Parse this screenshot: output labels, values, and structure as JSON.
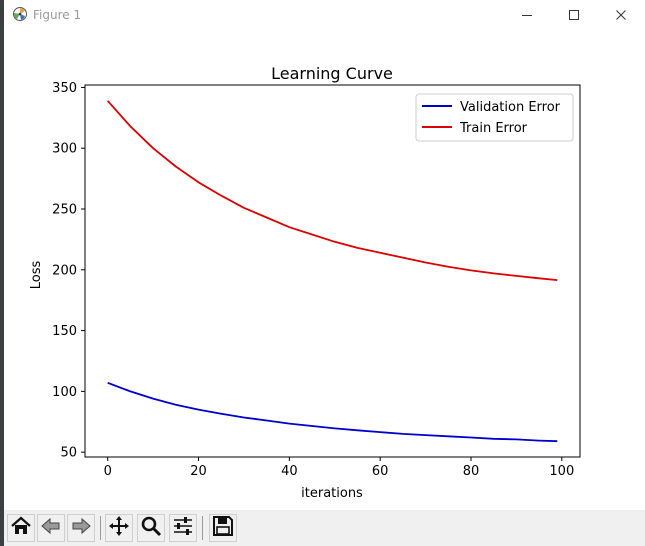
{
  "window": {
    "title": "Figure 1",
    "icons": {
      "app": "matplotlib-icon",
      "minimize": "minimize-icon",
      "maximize": "maximize-icon",
      "close": "close-icon"
    }
  },
  "toolbar": {
    "buttons": [
      {
        "name": "home-button",
        "icon": "home-icon"
      },
      {
        "name": "back-button",
        "icon": "back-arrow-icon"
      },
      {
        "name": "forward-button",
        "icon": "forward-arrow-icon"
      },
      {
        "name": "pan-button",
        "icon": "move-icon"
      },
      {
        "name": "zoom-button",
        "icon": "zoom-icon"
      },
      {
        "name": "configure-subplots-button",
        "icon": "sliders-icon"
      },
      {
        "name": "save-button",
        "icon": "save-icon"
      }
    ]
  },
  "chart_data": {
    "type": "line",
    "title": "Learning Curve",
    "xlabel": "iterations",
    "ylabel": "Loss",
    "xlim": [
      -5,
      104
    ],
    "ylim": [
      46,
      352
    ],
    "xticks": [
      0,
      20,
      40,
      60,
      80,
      100
    ],
    "yticks": [
      50,
      100,
      150,
      200,
      250,
      300,
      350
    ],
    "grid": false,
    "legend_position": "upper right",
    "series": [
      {
        "name": "Validation Error",
        "color": "#0000cc",
        "x": [
          0,
          5,
          10,
          15,
          20,
          25,
          30,
          35,
          40,
          45,
          50,
          55,
          60,
          65,
          70,
          75,
          80,
          85,
          90,
          95,
          99
        ],
        "values": [
          107,
          100,
          94,
          89,
          85,
          81.5,
          78.5,
          76,
          73.5,
          71.5,
          69.5,
          68,
          66.5,
          65,
          64,
          63,
          62,
          61,
          60.5,
          59.5,
          59
        ]
      },
      {
        "name": "Train Error",
        "color": "#dd0000",
        "x": [
          0,
          5,
          10,
          15,
          20,
          25,
          30,
          35,
          40,
          45,
          50,
          55,
          60,
          65,
          70,
          75,
          80,
          85,
          90,
          95,
          99
        ],
        "values": [
          339,
          318,
          300,
          285,
          272,
          261,
          251,
          243,
          235,
          229,
          223,
          218,
          214,
          210,
          206,
          202.5,
          199.5,
          197,
          195,
          193,
          191.5
        ]
      }
    ]
  }
}
